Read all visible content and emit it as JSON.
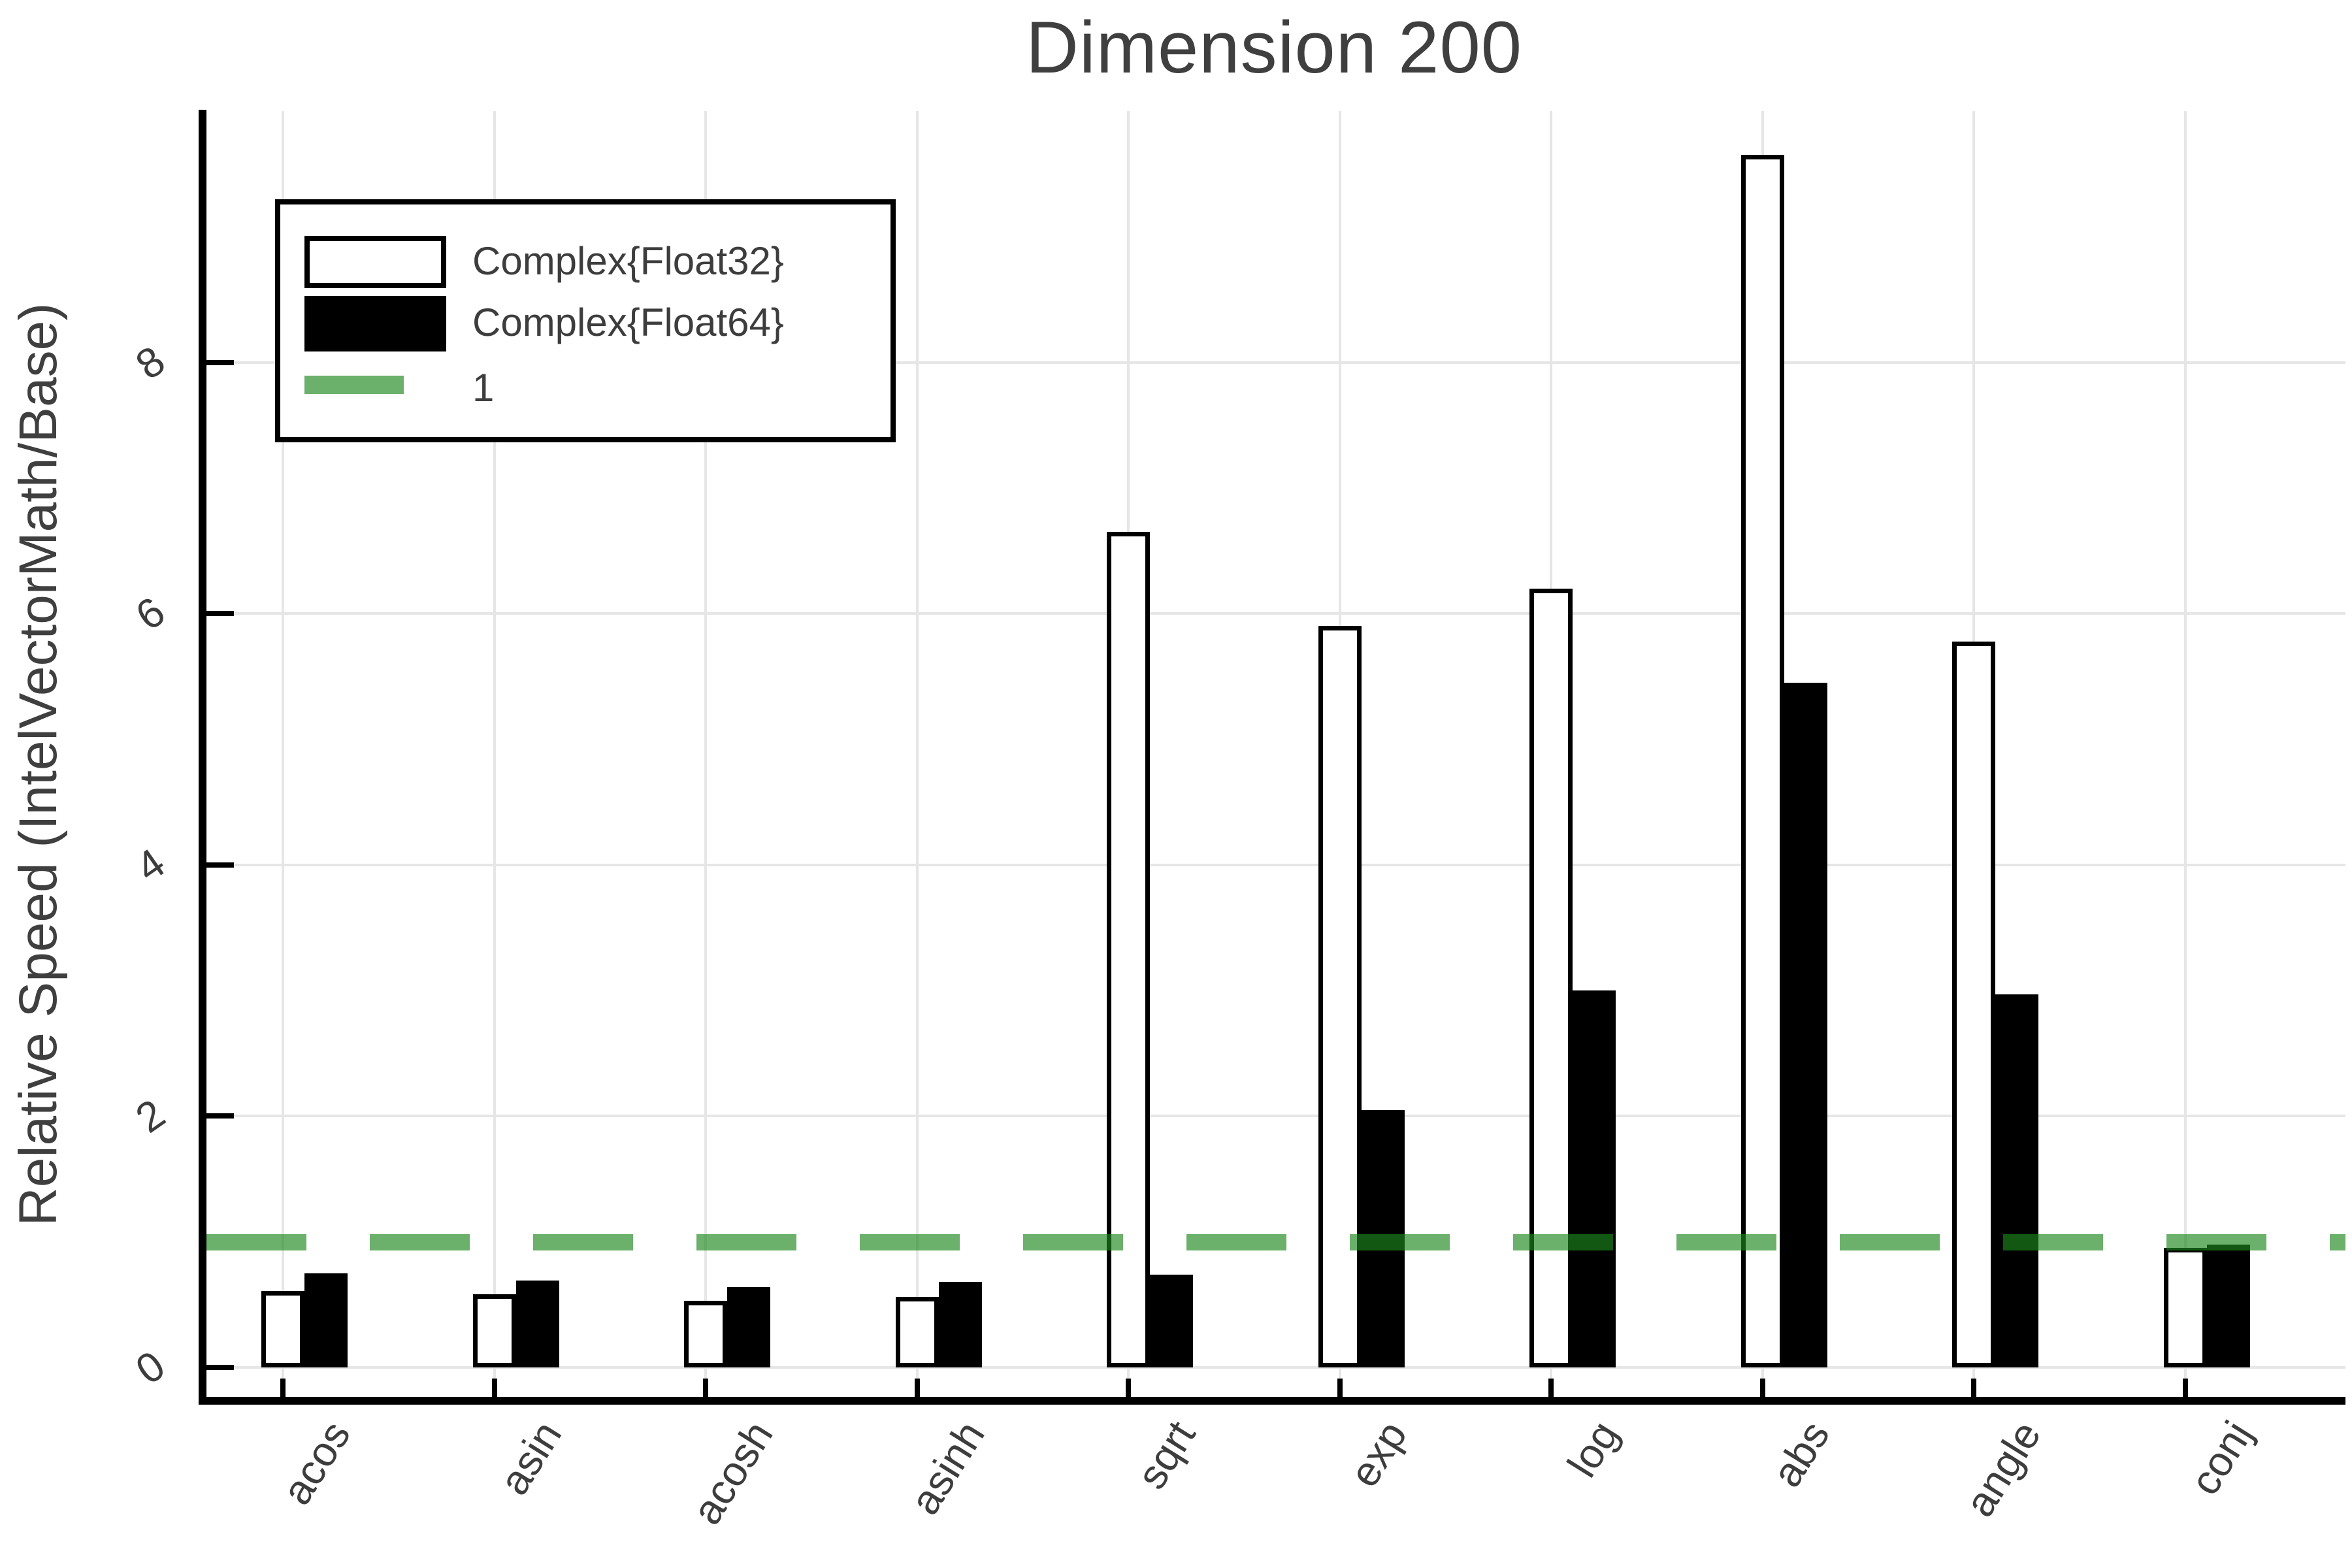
{
  "title": "Dimension 200",
  "ylabel": "Relative Speed (IntelVectorMath/Base)",
  "legend": {
    "items": [
      {
        "label": "Complex{Float32}",
        "swatch": "white-bar-swatch"
      },
      {
        "label": "Complex{Float64}",
        "swatch": "black-bar-swatch"
      },
      {
        "label": "1",
        "swatch": "green-line-swatch"
      }
    ]
  },
  "colors": {
    "float32_bar_fill": "#ffffff",
    "float32_bar_stroke": "#000000",
    "float64_bar_fill": "#000000",
    "reference_line_green": "#6bb06b",
    "gridline": "#e6e6e6",
    "text": "#3d3d3d"
  },
  "chart_data": {
    "type": "bar",
    "title": "Dimension 200",
    "xlabel": "",
    "ylabel": "Relative Speed (IntelVectorMath/Base)",
    "categories": [
      "acos",
      "asin",
      "acosh",
      "asinh",
      "sqrt",
      "exp",
      "log",
      "abs",
      "angle",
      "conj"
    ],
    "series": [
      {
        "name": "Complex{Float32}",
        "color": "#ffffff",
        "values": [
          0.61,
          0.58,
          0.53,
          0.56,
          6.65,
          5.9,
          6.2,
          9.65,
          5.78,
          0.95
        ]
      },
      {
        "name": "Complex{Float64}",
        "color": "#000000",
        "values": [
          0.75,
          0.69,
          0.64,
          0.68,
          0.74,
          2.05,
          3.0,
          5.45,
          2.97,
          0.98
        ]
      }
    ],
    "reference_line": {
      "label": "1",
      "value": 1,
      "color": "#6bb06b",
      "style": "dashed"
    },
    "yticks": [
      0,
      2,
      4,
      6,
      8
    ],
    "ylim": [
      -0.26,
      10.0
    ],
    "grid": true,
    "legend_position": "top-left"
  }
}
